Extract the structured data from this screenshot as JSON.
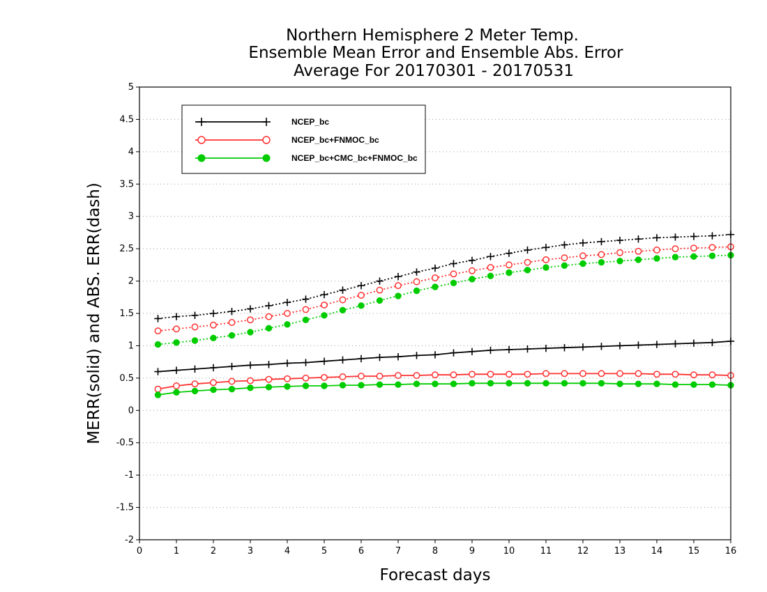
{
  "chart_data": {
    "type": "line",
    "title": [
      "Northern Hemisphere 2 Meter Temp.",
      "Ensemble Mean Error and Ensemble Abs. Error",
      "Average For 20170301 - 20170531"
    ],
    "xlabel": "Forecast days",
    "ylabel": "MERR(solid) and ABS. ERR(dash)",
    "xlim": [
      0,
      16
    ],
    "ylim": [
      -2,
      5
    ],
    "xticks": [
      0,
      1,
      2,
      3,
      4,
      5,
      6,
      7,
      8,
      9,
      10,
      11,
      12,
      13,
      14,
      15,
      16
    ],
    "xtick_labels": [
      "0",
      "1",
      "2",
      "3",
      "4",
      "5",
      "6",
      "7",
      "8",
      "9",
      "10",
      "11",
      "12",
      "13",
      "14",
      "15",
      "16"
    ],
    "yticks": [
      -2,
      -1.5,
      -1,
      -0.5,
      0,
      0.5,
      1,
      1.5,
      2,
      2.5,
      3,
      3.5,
      4,
      4.5,
      5
    ],
    "ytick_labels": [
      "-2",
      "-1.5",
      "-1",
      "-0.5",
      "0",
      "0.5",
      "1",
      "1.5",
      "2",
      "2.5",
      "3",
      "3.5",
      "4",
      "4.5",
      "5"
    ],
    "grid": "horizontal dotted",
    "legend_position": "top-left",
    "x": [
      0.5,
      1,
      1.5,
      2,
      2.5,
      3,
      3.5,
      4,
      4.5,
      5,
      5.5,
      6,
      6.5,
      7,
      7.5,
      8,
      8.5,
      9,
      9.5,
      10,
      10.5,
      11,
      11.5,
      12,
      12.5,
      13,
      13.5,
      14,
      14.5,
      15,
      15.5,
      16
    ],
    "series": [
      {
        "name": "NCEP_bc",
        "color": "#000000",
        "marker": "plus",
        "merr": [
          0.6,
          0.62,
          0.64,
          0.66,
          0.68,
          0.7,
          0.71,
          0.73,
          0.74,
          0.76,
          0.78,
          0.8,
          0.82,
          0.83,
          0.85,
          0.86,
          0.89,
          0.91,
          0.93,
          0.94,
          0.95,
          0.96,
          0.97,
          0.98,
          0.99,
          1.0,
          1.01,
          1.02,
          1.03,
          1.04,
          1.05,
          1.07
        ],
        "abs_err": [
          1.42,
          1.45,
          1.47,
          1.5,
          1.53,
          1.57,
          1.62,
          1.67,
          1.72,
          1.79,
          1.86,
          1.93,
          2.0,
          2.07,
          2.14,
          2.2,
          2.27,
          2.32,
          2.38,
          2.43,
          2.48,
          2.52,
          2.56,
          2.59,
          2.61,
          2.63,
          2.65,
          2.67,
          2.68,
          2.69,
          2.7,
          2.72
        ]
      },
      {
        "name": "NCEP_bc+FNMOC_bc",
        "color": "#ff3030",
        "marker": "open-circle",
        "merr": [
          0.33,
          0.38,
          0.41,
          0.43,
          0.45,
          0.46,
          0.48,
          0.49,
          0.5,
          0.51,
          0.52,
          0.53,
          0.53,
          0.54,
          0.54,
          0.55,
          0.55,
          0.56,
          0.56,
          0.56,
          0.56,
          0.57,
          0.57,
          0.57,
          0.57,
          0.57,
          0.57,
          0.56,
          0.56,
          0.55,
          0.55,
          0.54
        ],
        "abs_err": [
          1.23,
          1.26,
          1.29,
          1.32,
          1.36,
          1.4,
          1.45,
          1.5,
          1.56,
          1.63,
          1.71,
          1.78,
          1.86,
          1.93,
          1.99,
          2.05,
          2.11,
          2.16,
          2.21,
          2.25,
          2.29,
          2.33,
          2.36,
          2.39,
          2.41,
          2.44,
          2.46,
          2.48,
          2.5,
          2.51,
          2.52,
          2.53
        ]
      },
      {
        "name": "NCEP_bc+CMC_bc+FNMOC_bc",
        "color": "#00cc00",
        "marker": "filled-circle",
        "merr": [
          0.24,
          0.28,
          0.3,
          0.32,
          0.33,
          0.35,
          0.36,
          0.37,
          0.38,
          0.38,
          0.39,
          0.39,
          0.4,
          0.4,
          0.41,
          0.41,
          0.41,
          0.42,
          0.42,
          0.42,
          0.42,
          0.42,
          0.42,
          0.42,
          0.42,
          0.41,
          0.41,
          0.41,
          0.4,
          0.4,
          0.4,
          0.39
        ],
        "abs_err": [
          1.02,
          1.05,
          1.08,
          1.12,
          1.16,
          1.21,
          1.27,
          1.33,
          1.4,
          1.47,
          1.55,
          1.62,
          1.7,
          1.77,
          1.85,
          1.91,
          1.97,
          2.03,
          2.08,
          2.13,
          2.17,
          2.21,
          2.24,
          2.27,
          2.29,
          2.31,
          2.33,
          2.35,
          2.37,
          2.38,
          2.39,
          2.4
        ]
      }
    ]
  }
}
